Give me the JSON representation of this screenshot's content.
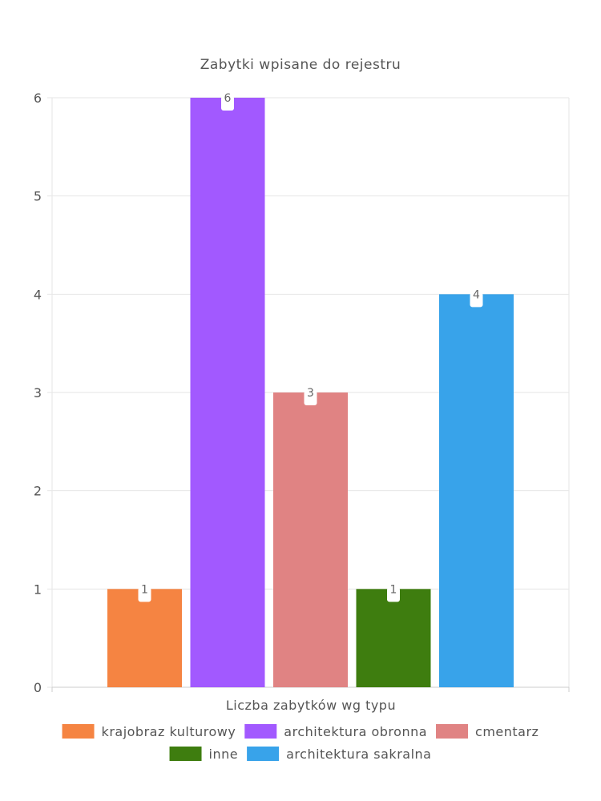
{
  "chart_data": {
    "type": "bar",
    "title": "Zabytki wpisane do rejestru",
    "xlabel": "Liczba zabytków wg typu",
    "ylabel": "",
    "ylim": [
      0,
      6
    ],
    "yticks": [
      "0",
      "1",
      "2",
      "3",
      "4",
      "5",
      "6"
    ],
    "grid": true,
    "legend_position": "bottom",
    "series": [
      {
        "name": "krajobraz kulturowy",
        "value": 1,
        "color": "#f58442"
      },
      {
        "name": "architektura obronna",
        "value": 6,
        "color": "#a259ff"
      },
      {
        "name": "cmentarz",
        "value": 3,
        "color": "#e08383"
      },
      {
        "name": "inne",
        "value": 1,
        "color": "#3e7d0f"
      },
      {
        "name": "architektura sakralna",
        "value": 4,
        "color": "#38a3ea"
      }
    ]
  }
}
